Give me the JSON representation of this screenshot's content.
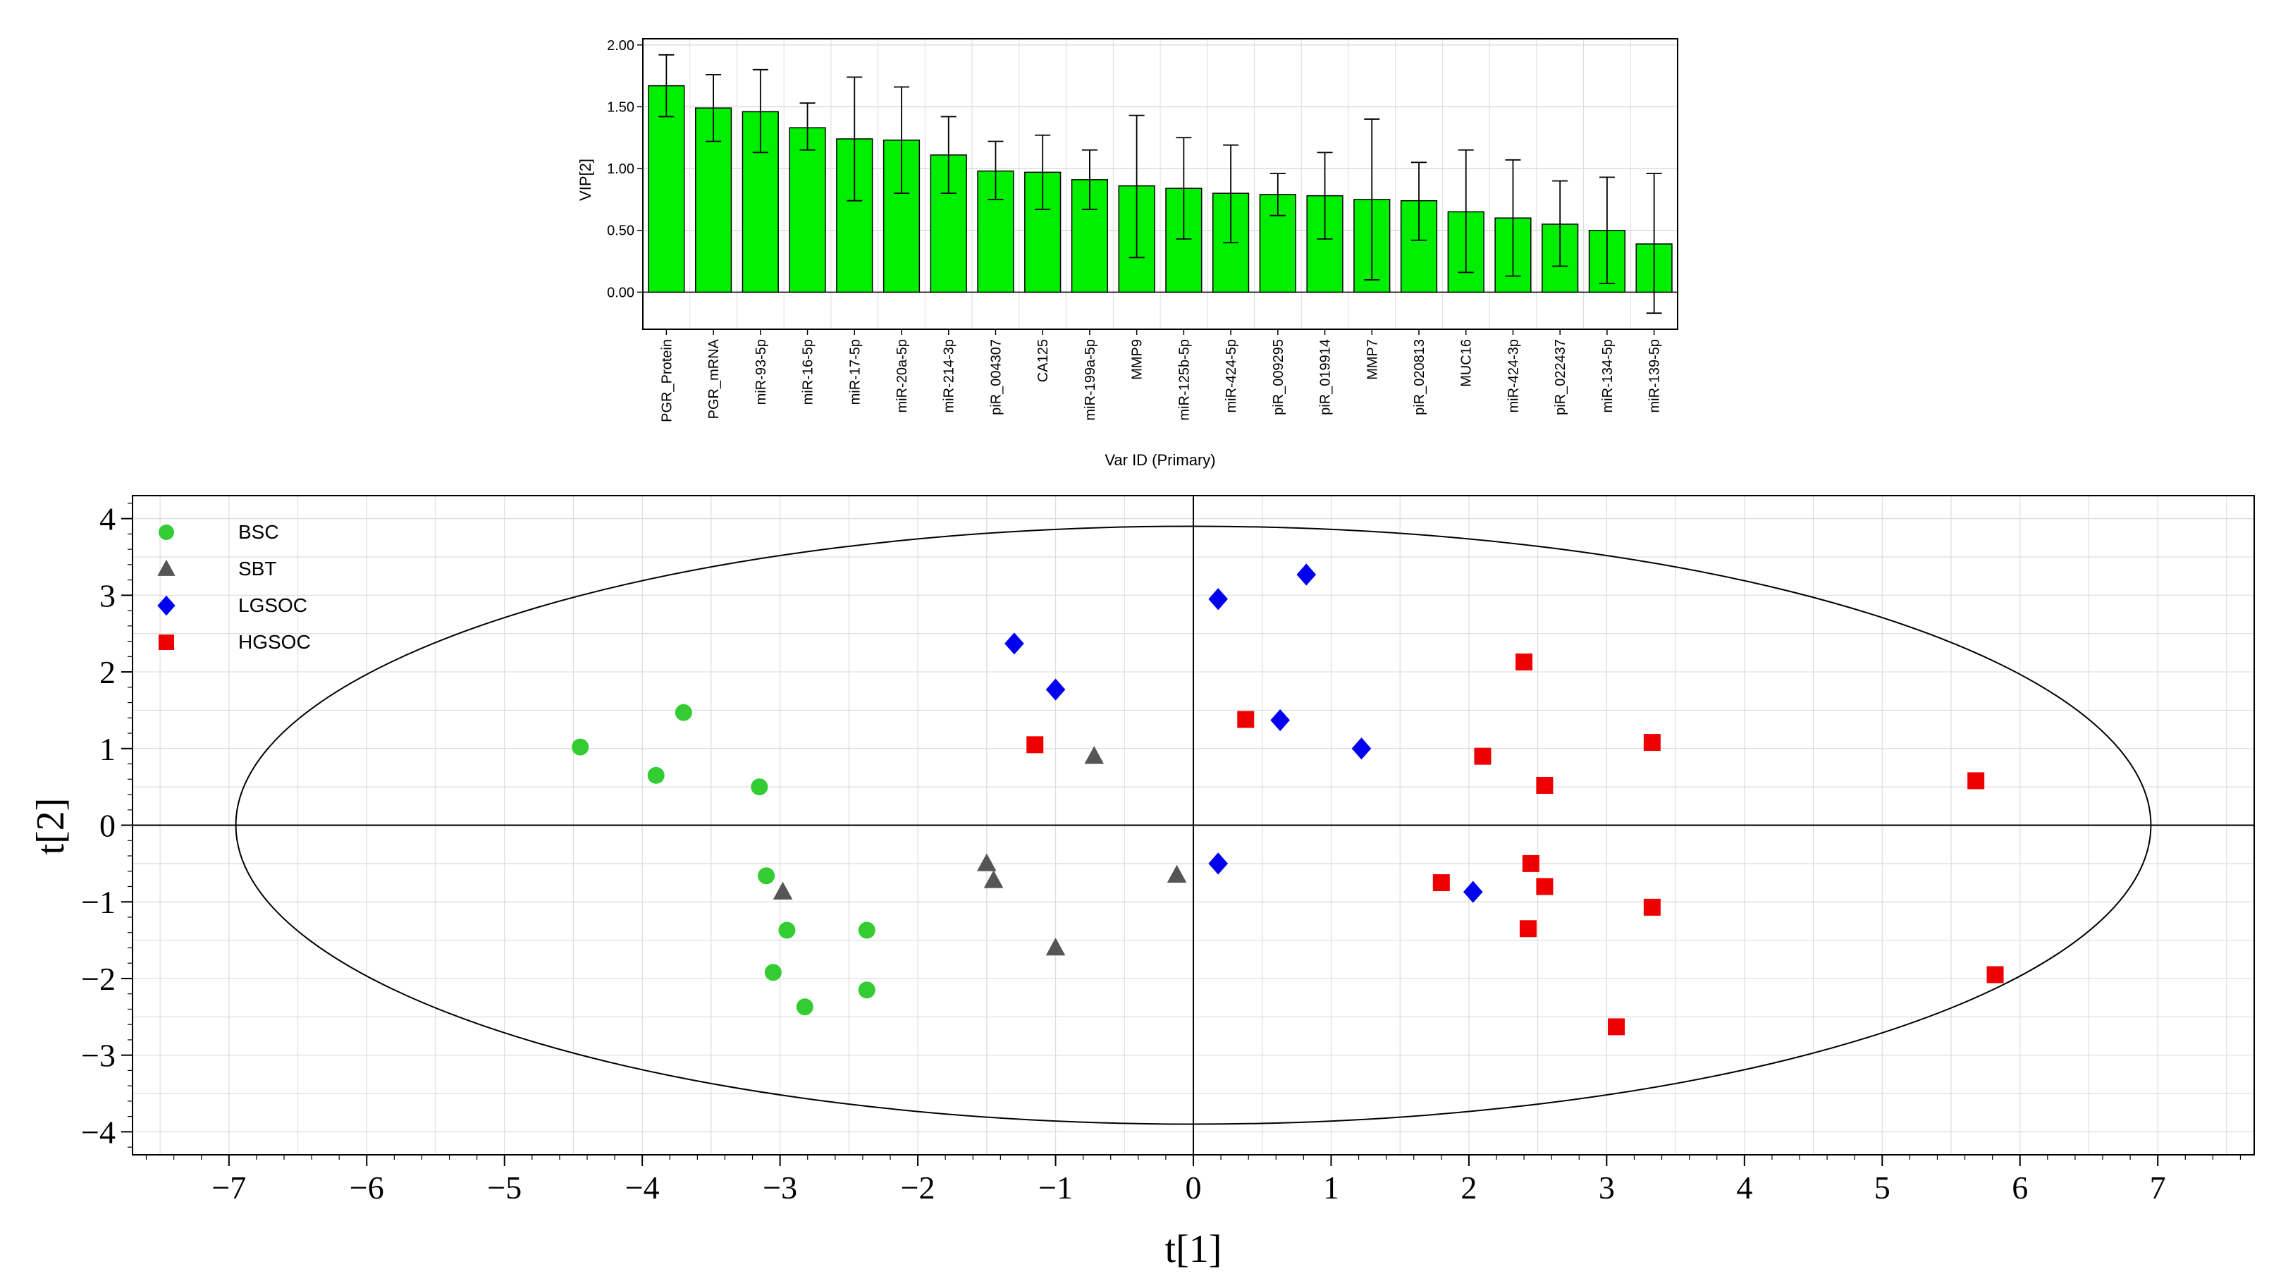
{
  "colors": {
    "bar_fill": "#00ee00",
    "bsc": "#33cc33",
    "sbt": "#555555",
    "lgsoc": "#0000ee",
    "hgsoc": "#ee0000",
    "grid": "#dddddd",
    "axis": "#000000"
  },
  "chart_data": [
    {
      "type": "bar",
      "xlabel": "Var ID (Primary)",
      "ylabel": "VIP[2]",
      "ylim": [
        -0.3,
        2.05
      ],
      "yticks": [
        "0.00",
        "0.50",
        "1.00",
        "1.50",
        "2.00"
      ],
      "ytick_values": [
        0,
        0.5,
        1,
        1.5,
        2
      ],
      "categories": [
        "PGR_Protein",
        "PGR_mRNA",
        "miR-93-5p",
        "miR-16-5p",
        "miR-17-5p",
        "miR-20a-5p",
        "miR-214-3p",
        "piR_004307",
        "CA125",
        "miR-199a-5p",
        "MMP9",
        "miR-125b-5p",
        "miR-424-5p",
        "piR_009295",
        "piR_019914",
        "MMP7",
        "piR_020813",
        "MUC16",
        "miR-424-3p",
        "piR_022437",
        "miR-134-5p",
        "miR-139-5p"
      ],
      "values": [
        1.67,
        1.49,
        1.46,
        1.33,
        1.24,
        1.23,
        1.11,
        0.98,
        0.97,
        0.91,
        0.86,
        0.84,
        0.8,
        0.79,
        0.78,
        0.75,
        0.74,
        0.65,
        0.6,
        0.55,
        0.5,
        0.39
      ],
      "err_low": [
        1.42,
        1.22,
        1.13,
        1.15,
        0.74,
        0.8,
        0.8,
        0.75,
        0.67,
        0.67,
        0.28,
        0.43,
        0.4,
        0.62,
        0.43,
        0.1,
        0.42,
        0.16,
        0.13,
        0.21,
        0.07,
        -0.17
      ],
      "err_high": [
        1.92,
        1.76,
        1.8,
        1.53,
        1.74,
        1.66,
        1.42,
        1.22,
        1.27,
        1.15,
        1.43,
        1.25,
        1.19,
        0.96,
        1.13,
        1.4,
        1.05,
        1.15,
        1.07,
        0.9,
        0.93,
        0.96
      ]
    },
    {
      "type": "scatter",
      "xlabel": "t[1]",
      "ylabel": "t[2]",
      "xlim": [
        -7.7,
        7.7
      ],
      "ylim": [
        -4.3,
        4.3
      ],
      "xticks": [
        -7,
        -6,
        -5,
        -4,
        -3,
        -2,
        -1,
        0,
        1,
        2,
        3,
        4,
        5,
        6,
        7
      ],
      "yticks": [
        -4,
        -3,
        -2,
        -1,
        0,
        1,
        2,
        3,
        4
      ],
      "ellipse": {
        "rx": 6.95,
        "ry": 3.9
      },
      "legend": "top-left",
      "series": [
        {
          "name": "BSC",
          "marker": "circle",
          "points": [
            [
              -4.45,
              1.02
            ],
            [
              -3.9,
              0.65
            ],
            [
              -3.7,
              1.47
            ],
            [
              -3.15,
              0.5
            ],
            [
              -3.1,
              -0.66
            ],
            [
              -2.95,
              -1.37
            ],
            [
              -3.05,
              -1.92
            ],
            [
              -2.82,
              -2.37
            ],
            [
              -2.37,
              -1.37
            ],
            [
              -2.37,
              -2.15
            ]
          ]
        },
        {
          "name": "SBT",
          "marker": "triangle",
          "points": [
            [
              -2.98,
              -0.87
            ],
            [
              -1.5,
              -0.5
            ],
            [
              -1.45,
              -0.72
            ],
            [
              -0.72,
              0.9
            ],
            [
              -0.12,
              -0.65
            ],
            [
              -1.0,
              -1.6
            ]
          ]
        },
        {
          "name": "LGSOC",
          "marker": "diamond",
          "points": [
            [
              -1.3,
              2.37
            ],
            [
              -1.0,
              1.77
            ],
            [
              0.18,
              2.95
            ],
            [
              0.82,
              3.27
            ],
            [
              0.63,
              1.37
            ],
            [
              1.22,
              1.0
            ],
            [
              0.18,
              -0.5
            ],
            [
              2.03,
              -0.87
            ]
          ]
        },
        {
          "name": "HGSOC",
          "marker": "square",
          "points": [
            [
              -1.15,
              1.05
            ],
            [
              0.38,
              1.38
            ],
            [
              2.1,
              0.9
            ],
            [
              2.4,
              2.13
            ],
            [
              2.55,
              0.52
            ],
            [
              3.33,
              1.08
            ],
            [
              5.68,
              0.58
            ],
            [
              1.8,
              -0.75
            ],
            [
              2.45,
              -0.5
            ],
            [
              2.55,
              -0.8
            ],
            [
              2.43,
              -1.35
            ],
            [
              3.33,
              -1.07
            ],
            [
              3.07,
              -2.63
            ],
            [
              5.82,
              -1.95
            ]
          ]
        }
      ]
    }
  ]
}
